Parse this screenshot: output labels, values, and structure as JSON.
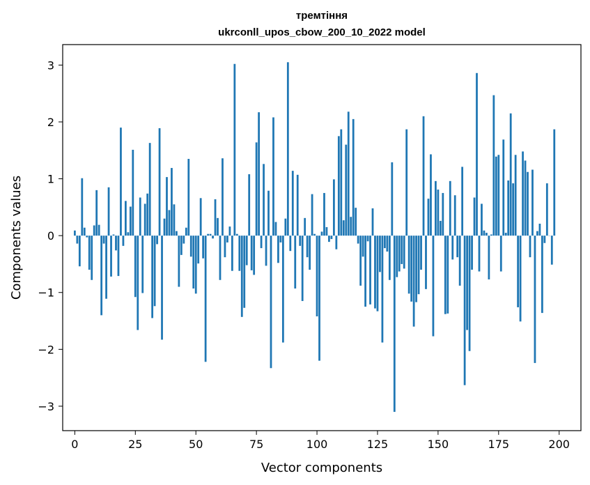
{
  "chart_data": {
    "type": "bar",
    "title": "тремтіння",
    "subtitle": "ukrconll_upos_cbow_200_10_2022 model",
    "xlabel": "Vector components",
    "ylabel": "Components values",
    "xlim": [
      -5,
      209
    ],
    "ylim": [
      -3.43,
      3.36
    ],
    "xticks": [
      0,
      25,
      50,
      75,
      100,
      125,
      150,
      175,
      200
    ],
    "yticks": [
      -3,
      -2,
      -1,
      0,
      1,
      2,
      3
    ],
    "xtick_labels": [
      "0",
      "25",
      "50",
      "75",
      "100",
      "125",
      "150",
      "175",
      "200"
    ],
    "ytick_labels": [
      "−3",
      "−2",
      "−1",
      "0",
      "1",
      "2",
      "3"
    ],
    "bar_color": "#1f77b4",
    "values": [
      0.09,
      -0.14,
      -0.54,
      1.01,
      0.14,
      -0.03,
      -0.6,
      -0.78,
      0.18,
      0.8,
      0.19,
      -1.4,
      -0.14,
      -1.11,
      0.85,
      -0.72,
      0.02,
      -0.26,
      -0.71,
      1.9,
      -0.18,
      0.61,
      0.06,
      0.51,
      1.51,
      -1.08,
      -1.66,
      0.67,
      -1.01,
      0.56,
      0.74,
      1.63,
      -1.45,
      -1.24,
      -0.15,
      1.89,
      -1.83,
      0.3,
      1.03,
      0.45,
      1.19,
      0.55,
      0.08,
      -0.9,
      -0.34,
      -0.14,
      0.14,
      1.35,
      -0.37,
      -0.93,
      -1.02,
      -0.49,
      0.66,
      -0.4,
      -2.22,
      0.03,
      0.03,
      -0.05,
      0.64,
      0.31,
      -0.78,
      1.36,
      -0.38,
      -0.12,
      0.16,
      -0.62,
      3.02,
      0.03,
      -0.62,
      -1.43,
      -1.27,
      -0.52,
      1.08,
      -0.61,
      -0.69,
      1.64,
      2.17,
      -0.22,
      1.26,
      -0.53,
      0.79,
      -2.33,
      2.08,
      0.24,
      -0.48,
      -0.12,
      -1.88,
      0.3,
      3.05,
      -0.27,
      1.14,
      -0.93,
      1.07,
      -0.18,
      -1.15,
      0.31,
      -0.38,
      -0.6,
      0.73,
      0.03,
      -1.42,
      -2.2,
      0.07,
      0.75,
      0.15,
      -0.11,
      -0.06,
      0.99,
      -0.24,
      1.75,
      1.87,
      0.27,
      1.6,
      2.18,
      0.33,
      2.05,
      0.49,
      -0.14,
      -0.88,
      -0.37,
      -1.25,
      -0.1,
      -1.21,
      0.48,
      -1.28,
      -1.33,
      -0.64,
      -1.88,
      -0.22,
      -0.28,
      -0.78,
      1.29,
      -3.1,
      -0.73,
      -0.63,
      -0.5,
      -0.58,
      1.87,
      -1.02,
      -1.16,
      -1.6,
      -1.17,
      -1.03,
      -0.6,
      2.1,
      -0.94,
      0.65,
      1.43,
      -1.77,
      0.96,
      0.81,
      0.26,
      0.75,
      -1.38,
      -1.37,
      0.96,
      -0.42,
      0.71,
      -0.38,
      -0.88,
      1.21,
      -2.63,
      -1.66,
      -2.03,
      -0.6,
      0.67,
      2.86,
      -0.63,
      0.56,
      0.09,
      0.05,
      -0.77,
      0.02,
      2.47,
      1.39,
      1.42,
      -0.63,
      1.69,
      0.05,
      0.97,
      2.15,
      0.92,
      1.42,
      -1.26,
      -1.51,
      1.48,
      1.32,
      1.12,
      -0.38,
      1.16,
      -2.24,
      0.08,
      0.21,
      -1.36,
      -0.13,
      0.92,
      0.0,
      -0.51,
      1.87
    ]
  }
}
